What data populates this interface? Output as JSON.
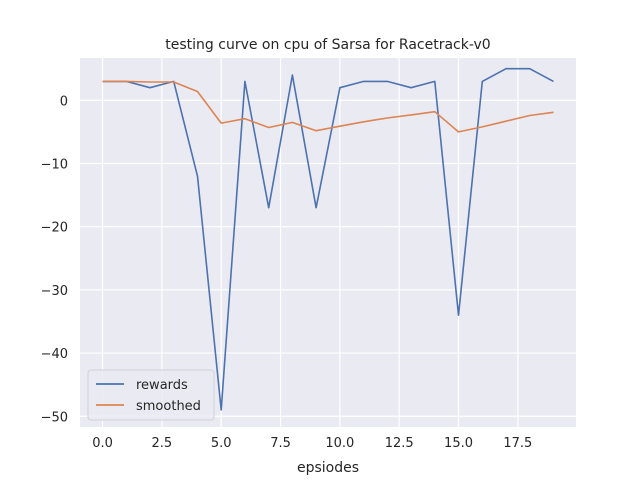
{
  "chart_data": {
    "type": "line",
    "title": "testing curve on cpu of Sarsa for Racetrack-v0",
    "xlabel": "epsiodes",
    "ylabel": "",
    "x": [
      0,
      1,
      2,
      3,
      4,
      5,
      6,
      7,
      8,
      9,
      10,
      11,
      12,
      13,
      14,
      15,
      16,
      17,
      18,
      19
    ],
    "series": [
      {
        "name": "rewards",
        "color": "#4c72b0",
        "values": [
          3,
          3,
          2,
          3,
          -12,
          -49,
          3,
          -17,
          4,
          -17,
          2,
          3,
          3,
          2,
          3,
          -34,
          3,
          5,
          5,
          3
        ]
      },
      {
        "name": "smoothed",
        "color": "#dd8452",
        "values": [
          3.0,
          3.0,
          2.9,
          2.9,
          1.4,
          -3.6,
          -2.9,
          -4.3,
          -3.5,
          -4.8,
          -4.1,
          -3.4,
          -2.8,
          -2.3,
          -1.8,
          -5.0,
          -4.2,
          -3.3,
          -2.4,
          -1.9
        ]
      }
    ],
    "xticks": [
      0.0,
      2.5,
      5.0,
      7.5,
      10.0,
      12.5,
      15.0,
      17.5
    ],
    "xtick_labels": [
      "0.0",
      "2.5",
      "5.0",
      "7.5",
      "10.0",
      "12.5",
      "15.0",
      "17.5"
    ],
    "yticks": [
      0,
      -10,
      -20,
      -30,
      -40,
      -50
    ],
    "ytick_labels": [
      "0",
      "−10",
      "−20",
      "−30",
      "−40",
      "−50"
    ],
    "xlim": [
      -0.95,
      19.95
    ],
    "ylim": [
      -51.7,
      6.7
    ],
    "grid": true,
    "legend_position": "lower-left",
    "background_color": "#eaeaf2",
    "grid_color": "#ffffff"
  }
}
